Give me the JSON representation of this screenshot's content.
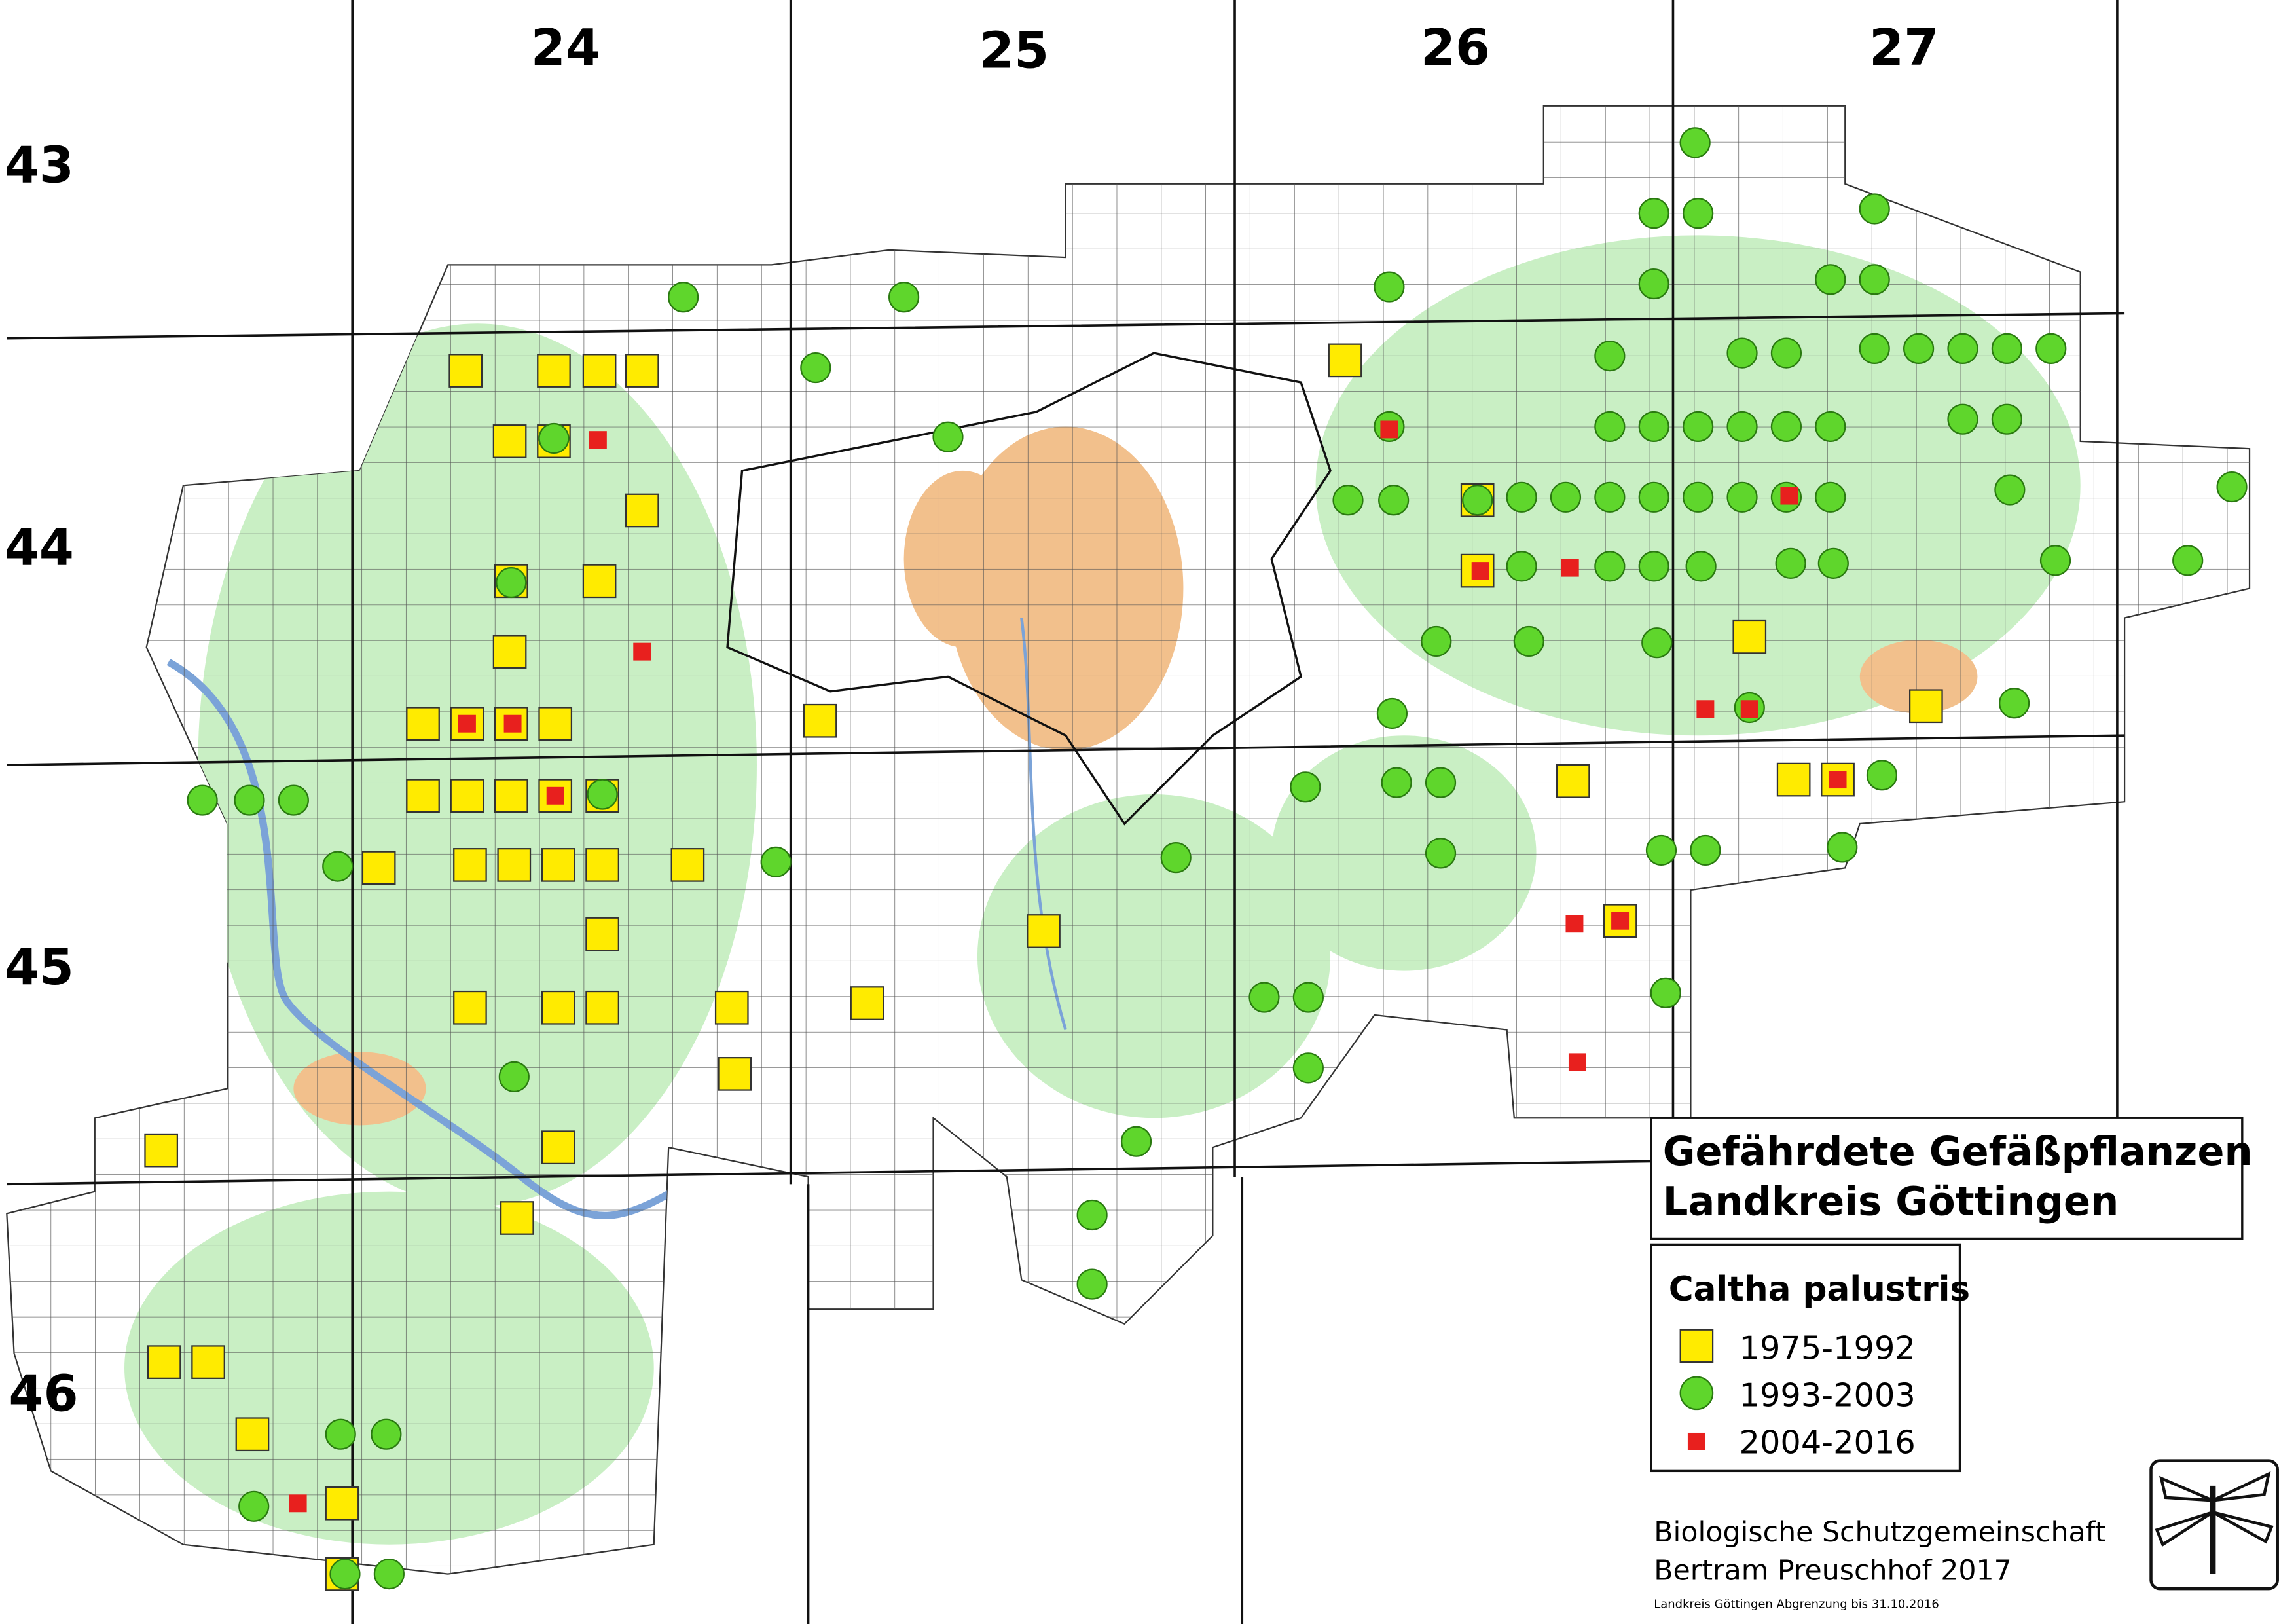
{
  "grid": {
    "columns": [
      "24",
      "25",
      "26",
      "27"
    ],
    "rows": [
      "43",
      "44",
      "45",
      "46"
    ]
  },
  "title": {
    "line1": "Gefährdete Gefäßpflanzen",
    "line2": "Landkreis Göttingen"
  },
  "legend": {
    "species": "Caltha palustris",
    "items": [
      "1975-1992",
      "1993-2003",
      "2004-2016"
    ]
  },
  "credit": {
    "line1": "Biologische Schutzgemeinschaft",
    "line2": "Bertram Preuschhof 2017",
    "note": "Landkreis Göttingen Abgrenzung bis 31.10.2016"
  }
}
